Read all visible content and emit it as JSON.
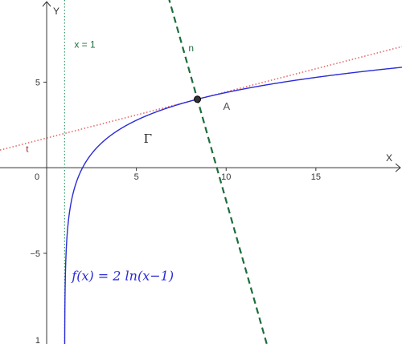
{
  "chart_data": {
    "type": "line",
    "xlabel": "X",
    "ylabel": "Y",
    "xlim": [
      -2.6,
      19.8
    ],
    "ylim": [
      -10.3,
      9.8
    ],
    "x_ticks": [
      0,
      5,
      10,
      15
    ],
    "y_ticks": [
      5,
      -5
    ],
    "x_tick_labels": [
      "0",
      "5",
      "10",
      "15"
    ],
    "y_tick_labels": [
      "5",
      "−5"
    ],
    "curve": {
      "name": "Γ",
      "formula": "f(x) = 2 ln(x−1)",
      "a": 2,
      "h": 1,
      "color": "#2a2ad8"
    },
    "asymptote": {
      "x": 1,
      "label": "x = 1",
      "color": "#2e9a64"
    },
    "point": {
      "name": "A",
      "x": 8.4,
      "y": 4.0
    },
    "tangent": {
      "name": "t",
      "slope": 0.27,
      "through_x": 8.4,
      "color": "#e03030"
    },
    "normal": {
      "name": "n",
      "slope": -3.7,
      "through_x": 8.4,
      "color": "#1b6e3c"
    },
    "grid": false
  }
}
